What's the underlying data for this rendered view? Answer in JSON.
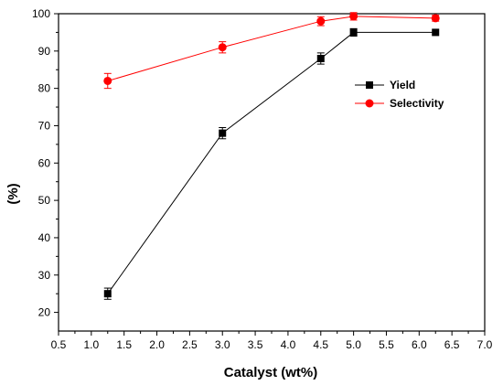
{
  "chart_data": {
    "type": "line",
    "title": "",
    "xlabel": "Catalyst (wt%)",
    "ylabel": "(%)",
    "xlim": [
      0.5,
      7.0
    ],
    "ylim": [
      15,
      100
    ],
    "xticks": [
      "0.5",
      "1.0",
      "1.5",
      "2.0",
      "2.5",
      "3.0",
      "3.5",
      "4.0",
      "4.5",
      "5.0",
      "5.5",
      "6.0",
      "6.5",
      "7.0"
    ],
    "yticks": [
      "20",
      "30",
      "40",
      "50",
      "60",
      "70",
      "80",
      "90",
      "100"
    ],
    "grid": false,
    "legend_position": "upper-right",
    "series": [
      {
        "name": "Yield",
        "color": "#000000",
        "marker": "square",
        "x": [
          1.25,
          3.0,
          4.5,
          5.0,
          6.25
        ],
        "y": [
          25,
          68,
          88,
          95,
          95
        ],
        "error": [
          1.5,
          1.5,
          1.5,
          1.0,
          0.0
        ]
      },
      {
        "name": "Selectivity",
        "color": "#ff0000",
        "marker": "circle",
        "x": [
          1.25,
          3.0,
          4.5,
          5.0,
          6.25
        ],
        "y": [
          82,
          91,
          98,
          99.3,
          98.8
        ],
        "error": [
          2.0,
          1.5,
          1.2,
          1.0,
          0.8
        ]
      }
    ]
  }
}
